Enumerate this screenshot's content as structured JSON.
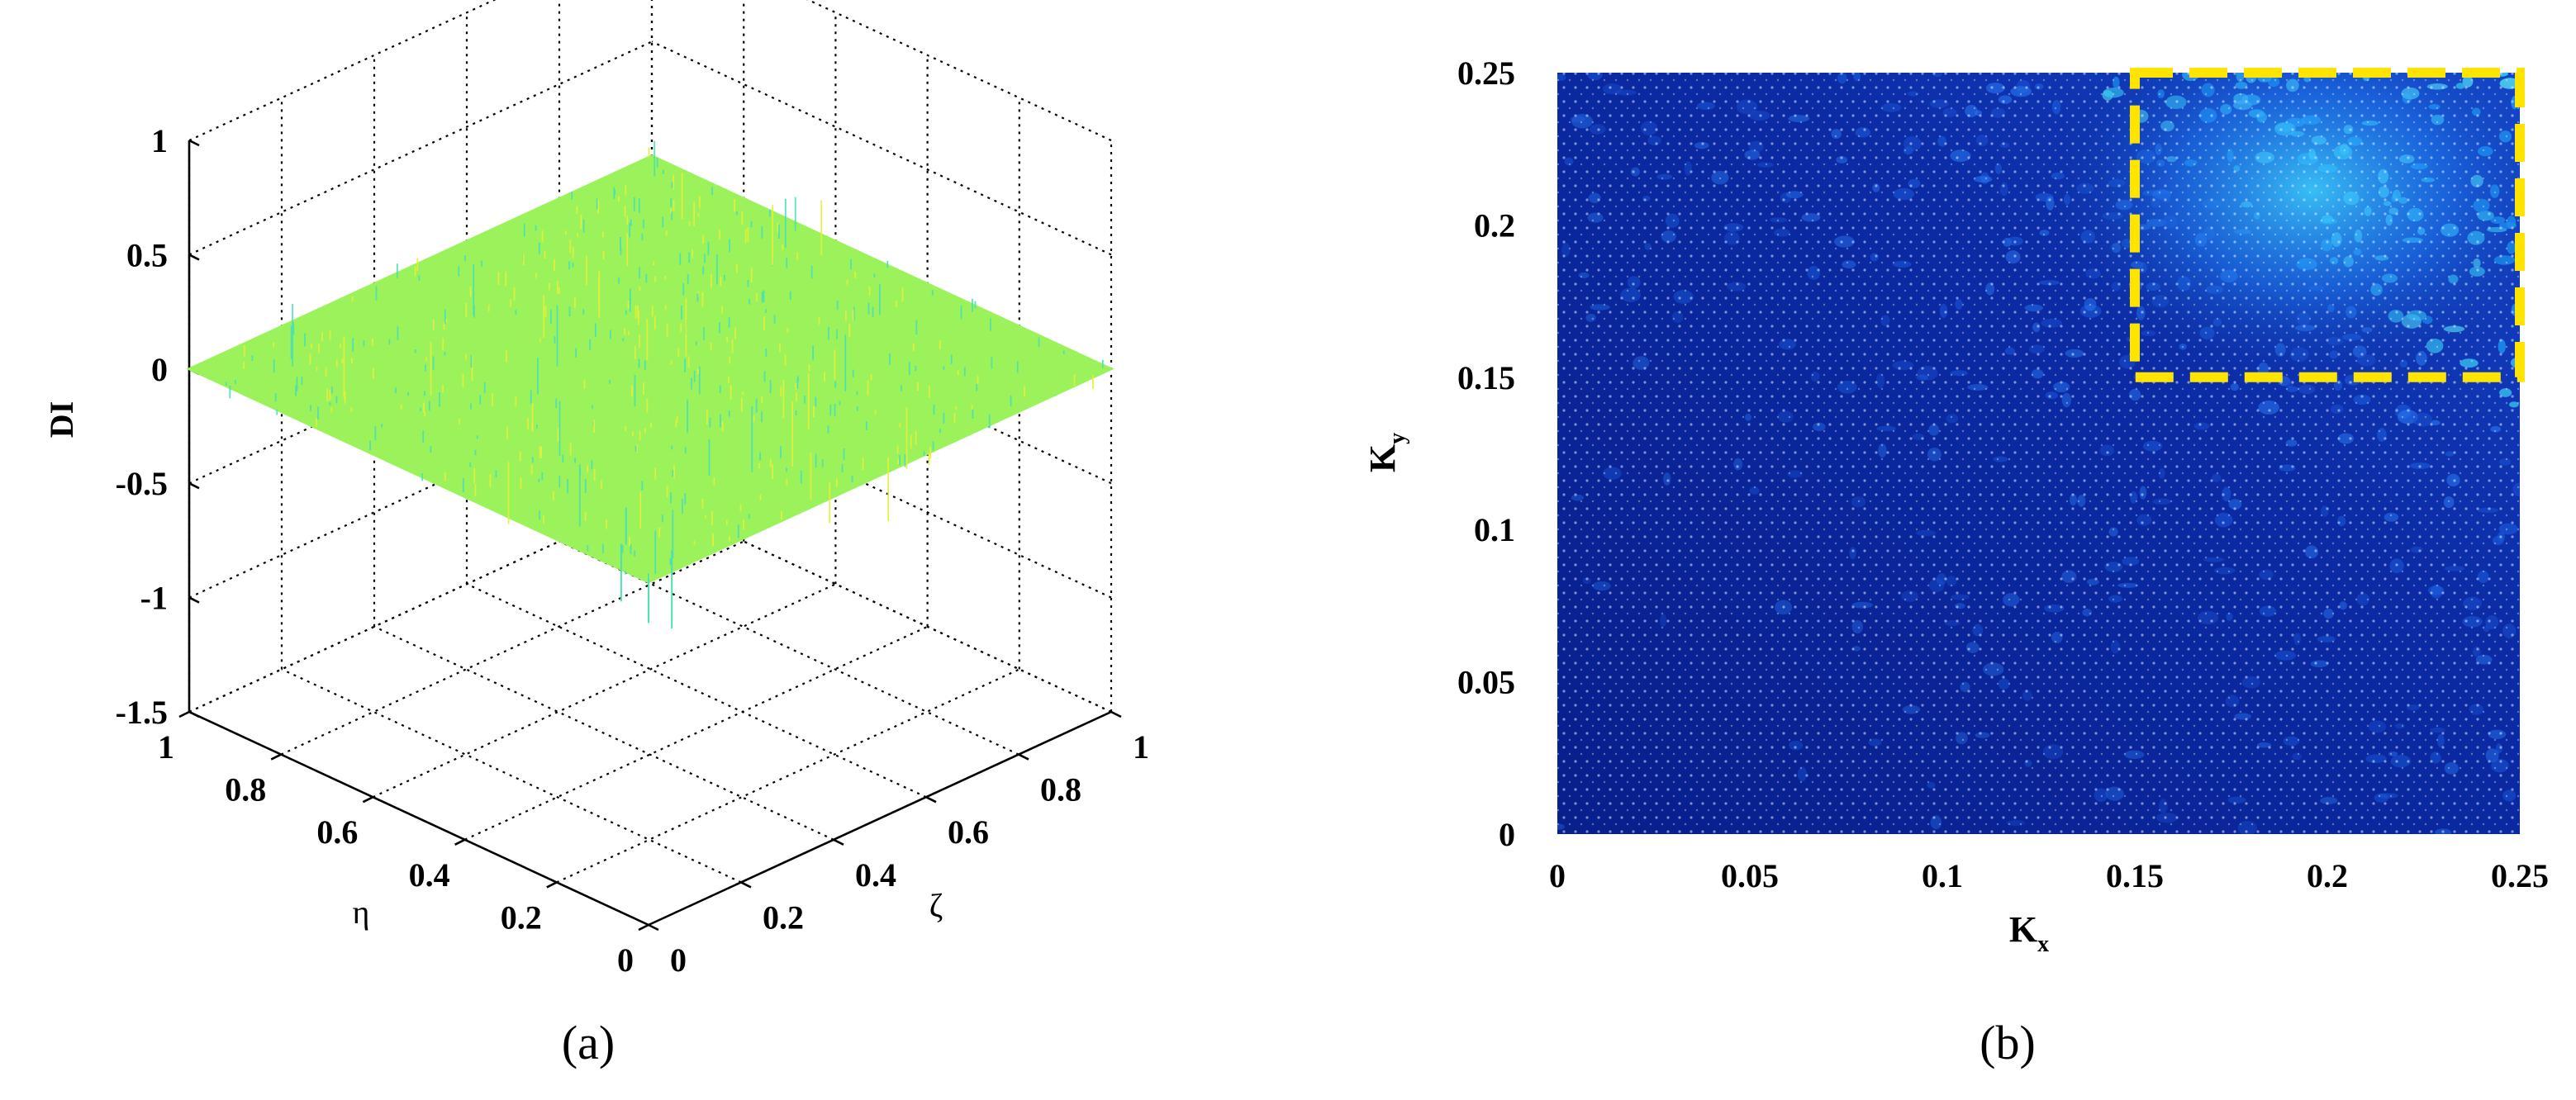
{
  "chart_data": [
    {
      "panel": "a",
      "type": "surface3d",
      "caption": "(a)",
      "zlabel": "DI",
      "xlabel": "η",
      "ylabel": "ζ",
      "zlim": [
        -1.5,
        1
      ],
      "xlim": [
        0,
        1
      ],
      "ylim": [
        0,
        1
      ],
      "z_ticks": [
        "1",
        "0.5",
        "0",
        "-0.5",
        "-1",
        "-1.5"
      ],
      "eta_ticks": [
        "1",
        "0.8",
        "0.6",
        "0.4",
        "0.2",
        "0"
      ],
      "zeta_ticks": [
        "0",
        "0.2",
        "0.4",
        "0.6",
        "0.8",
        "1"
      ],
      "surface_level": 0,
      "grid": true,
      "colors": {
        "surface": "#9BF25A",
        "spikes": [
          "#E5F03A",
          "#4CE0B4"
        ]
      }
    },
    {
      "panel": "b",
      "type": "heatmap",
      "caption": "(b)",
      "xlabel": "K",
      "xlabel_sub": "x",
      "ylabel": "K",
      "ylabel_sub": "y",
      "xlim": [
        0,
        0.25
      ],
      "ylim": [
        0,
        0.25
      ],
      "x_ticks": [
        "0",
        "0.05",
        "0.1",
        "0.15",
        "0.2",
        "0.25"
      ],
      "y_ticks": [
        "0",
        "0.05",
        "0.1",
        "0.15",
        "0.2",
        "0.25"
      ],
      "highlight_box": {
        "x": [
          0.15,
          0.25
        ],
        "y": [
          0.15,
          0.25
        ],
        "color": "#FFE400",
        "style": "dashed"
      },
      "colors": {
        "background": "#0A2A9E",
        "high": "#3FE0FF"
      }
    }
  ]
}
